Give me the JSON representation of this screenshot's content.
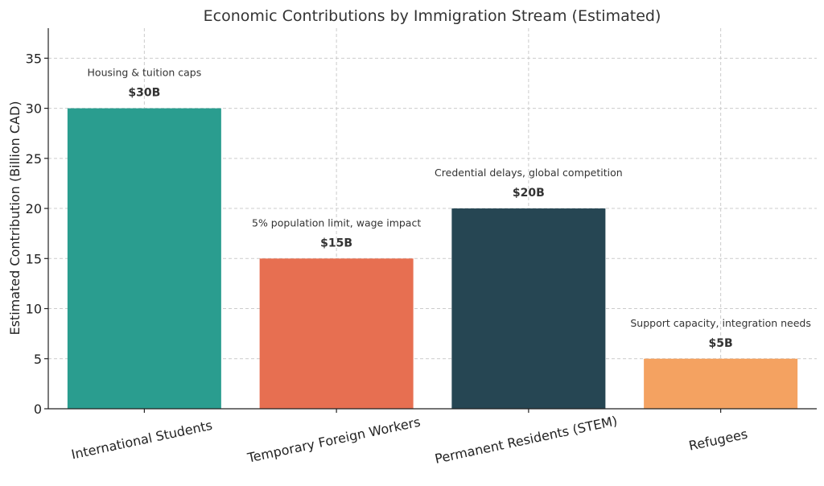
{
  "chart_data": {
    "type": "bar",
    "title": "Economic Contributions by Immigration Stream (Estimated)",
    "xlabel": "",
    "ylabel": "Estimated Contribution (Billion CAD)",
    "ylim": [
      0,
      38
    ],
    "yticks": [
      0,
      5,
      10,
      15,
      20,
      25,
      30,
      35
    ],
    "grid": true,
    "categories": [
      "International Students",
      "Temporary Foreign Workers",
      "Permanent Residents (STEM)",
      "Refugees"
    ],
    "values": [
      30,
      15,
      20,
      5
    ],
    "value_labels": [
      "$30B",
      "$15B",
      "$20B",
      "$5B"
    ],
    "annotations": [
      "Housing & tuition caps",
      "5% population limit, wage impact",
      "Credential delays, global competition",
      "Support capacity, integration needs"
    ],
    "colors": [
      "#2a9d8f",
      "#e76f51",
      "#264653",
      "#f4a261"
    ]
  }
}
